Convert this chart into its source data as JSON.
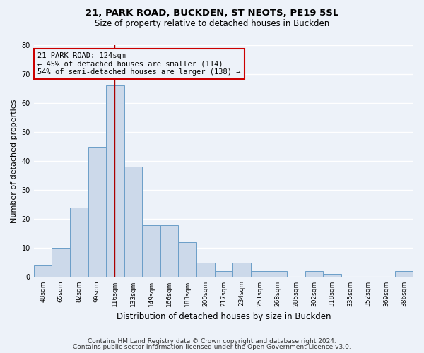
{
  "title1": "21, PARK ROAD, BUCKDEN, ST NEOTS, PE19 5SL",
  "title2": "Size of property relative to detached houses in Buckden",
  "xlabel": "Distribution of detached houses by size in Buckden",
  "ylabel": "Number of detached properties",
  "bin_labels": [
    "48sqm",
    "65sqm",
    "82sqm",
    "99sqm",
    "116sqm",
    "133sqm",
    "149sqm",
    "166sqm",
    "183sqm",
    "200sqm",
    "217sqm",
    "234sqm",
    "251sqm",
    "268sqm",
    "285sqm",
    "302sqm",
    "318sqm",
    "335sqm",
    "352sqm",
    "369sqm",
    "386sqm"
  ],
  "bar_values": [
    4,
    10,
    24,
    45,
    66,
    38,
    18,
    18,
    12,
    5,
    2,
    5,
    2,
    2,
    0,
    2,
    1,
    0,
    0,
    0,
    2
  ],
  "bar_color": "#ccd9ea",
  "bar_edge_color": "#6b9ec8",
  "annotation_line_color": "#aa0000",
  "annotation_box_text": "21 PARK ROAD: 124sqm\n← 45% of detached houses are smaller (114)\n54% of semi-detached houses are larger (138) →",
  "annotation_box_edge_color": "#cc0000",
  "ylim": [
    0,
    80
  ],
  "yticks": [
    0,
    10,
    20,
    30,
    40,
    50,
    60,
    70,
    80
  ],
  "footer1": "Contains HM Land Registry data © Crown copyright and database right 2024.",
  "footer2": "Contains public sector information licensed under the Open Government Licence v3.0.",
  "bg_color": "#edf2f9",
  "grid_color": "#ffffff",
  "title_fontsize": 9.5,
  "subtitle_fontsize": 8.5,
  "ylabel_fontsize": 8,
  "xlabel_fontsize": 8.5,
  "tick_fontsize": 6.5,
  "annotation_fontsize": 7.5,
  "footer_fontsize": 6.5
}
